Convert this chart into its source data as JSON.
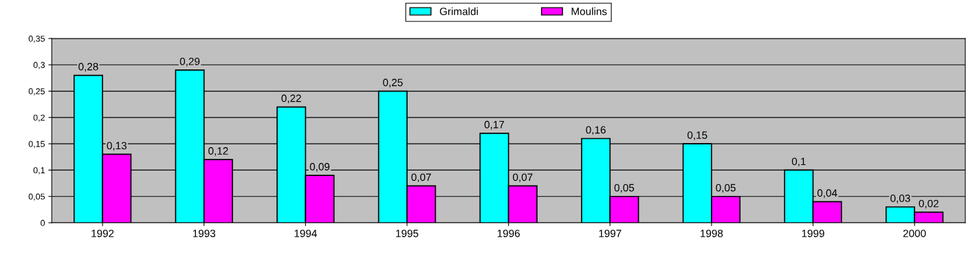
{
  "chart_data": {
    "type": "bar",
    "categories": [
      "1992",
      "1993",
      "1994",
      "1995",
      "1996",
      "1997",
      "1998",
      "1999",
      "2000"
    ],
    "series": [
      {
        "name": "Grimaldi",
        "color": "#00ffff",
        "values": [
          0.28,
          0.29,
          0.22,
          0.25,
          0.17,
          0.16,
          0.15,
          0.1,
          0.03
        ],
        "value_labels": [
          "0,28",
          "0,29",
          "0,22",
          "0,25",
          "0,17",
          "0,16",
          "0,15",
          "0,1",
          "0,03"
        ]
      },
      {
        "name": "Moulins",
        "color": "#ff00ff",
        "values": [
          0.13,
          0.12,
          0.09,
          0.07,
          0.07,
          0.05,
          0.05,
          0.04,
          0.02
        ],
        "value_labels": [
          "0,13",
          "0,12",
          "0,09",
          "0,07",
          "0,07",
          "0,05",
          "0,05",
          "0,04",
          "0,02"
        ]
      }
    ],
    "ylim": [
      0,
      0.35
    ],
    "yticks": [
      {
        "value": 0,
        "label": "0"
      },
      {
        "value": 0.05,
        "label": "0,05"
      },
      {
        "value": 0.1,
        "label": "0,1"
      },
      {
        "value": 0.15,
        "label": "0,15"
      },
      {
        "value": 0.2,
        "label": "0,2"
      },
      {
        "value": 0.25,
        "label": "0,25"
      },
      {
        "value": 0.3,
        "label": "0,3"
      },
      {
        "value": 0.35,
        "label": "0,35"
      }
    ],
    "grid": "y",
    "legend": "top"
  }
}
